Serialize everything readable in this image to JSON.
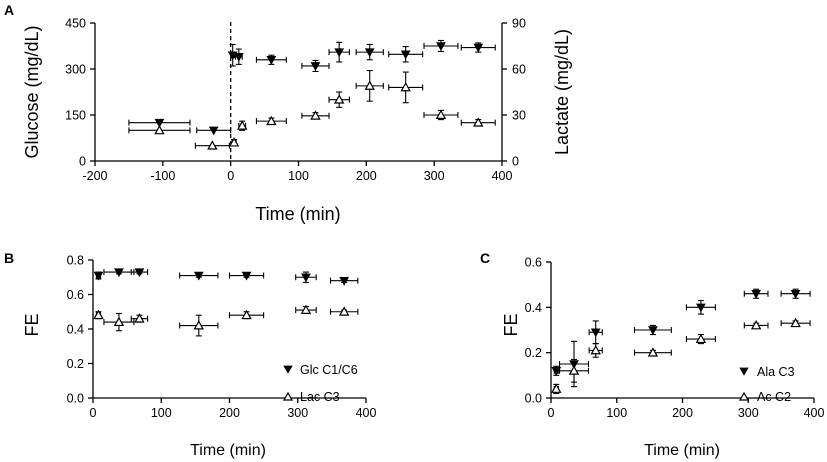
{
  "chart_data": [
    {
      "panel": "A",
      "type": "scatter",
      "xlabel": "Time (min)",
      "ylabel": "Glucose (mg/dL)",
      "y2label": "Lactate (mg/dL)",
      "xlim": [
        -200,
        400
      ],
      "ylim": [
        0,
        450
      ],
      "y2lim": [
        0,
        90
      ],
      "xticks": [
        "-200",
        "-100",
        "0",
        "100",
        "200",
        "300",
        "400"
      ],
      "yticks": [
        "0",
        "150",
        "300",
        "450"
      ],
      "y2ticks": [
        "0",
        "30",
        "60",
        "90"
      ],
      "vline_x": 0,
      "series": [
        {
          "name": "Glucose",
          "marker": "down-triangle-filled",
          "axis": "left",
          "points": [
            {
              "x": -105,
              "y": 125,
              "xerr": 45,
              "yerr": 0
            },
            {
              "x": -25,
              "y": 100,
              "xerr": 25,
              "yerr": 0
            },
            {
              "x": 3,
              "y": 345,
              "xerr": 3,
              "yerr": 35
            },
            {
              "x": 12,
              "y": 340,
              "xerr": 5,
              "yerr": 25
            },
            {
              "x": 60,
              "y": 330,
              "xerr": 22,
              "yerr": 15
            },
            {
              "x": 125,
              "y": 310,
              "xerr": 20,
              "yerr": 18
            },
            {
              "x": 160,
              "y": 355,
              "xerr": 15,
              "yerr": 32
            },
            {
              "x": 205,
              "y": 355,
              "xerr": 20,
              "yerr": 25
            },
            {
              "x": 258,
              "y": 348,
              "xerr": 25,
              "yerr": 25
            },
            {
              "x": 310,
              "y": 375,
              "xerr": 25,
              "yerr": 18
            },
            {
              "x": 365,
              "y": 370,
              "xerr": 25,
              "yerr": 15
            }
          ]
        },
        {
          "name": "Lactate",
          "marker": "up-triangle-open",
          "axis": "right",
          "points": [
            {
              "x": -105,
              "y": 20,
              "xerr": 45,
              "yerr": 0
            },
            {
              "x": -27,
              "y": 10,
              "xerr": 25,
              "yerr": 0
            },
            {
              "x": 5,
              "y": 12,
              "xerr": 3,
              "yerr": 2
            },
            {
              "x": 17,
              "y": 23,
              "xerr": 5,
              "yerr": 3
            },
            {
              "x": 60,
              "y": 26,
              "xerr": 22,
              "yerr": 2
            },
            {
              "x": 125,
              "y": 29.5,
              "xerr": 20,
              "yerr": 2
            },
            {
              "x": 160,
              "y": 40,
              "xerr": 15,
              "yerr": 5
            },
            {
              "x": 205,
              "y": 49,
              "xerr": 20,
              "yerr": 10
            },
            {
              "x": 258,
              "y": 48,
              "xerr": 25,
              "yerr": 10
            },
            {
              "x": 310,
              "y": 30,
              "xerr": 25,
              "yerr": 3
            },
            {
              "x": 365,
              "y": 25,
              "xerr": 25,
              "yerr": 2
            }
          ]
        }
      ]
    },
    {
      "panel": "B",
      "type": "scatter",
      "xlabel": "Time (min)",
      "ylabel": "FE",
      "xlim": [
        0,
        400
      ],
      "ylim": [
        0,
        0.8
      ],
      "xticks": [
        "0",
        "100",
        "200",
        "300",
        "400"
      ],
      "yticks": [
        "0.0",
        "0.2",
        "0.4",
        "0.6",
        "0.8"
      ],
      "legend": [
        "Glc C1/C6",
        "Lac C3"
      ],
      "legend_position": "bottom-right",
      "series": [
        {
          "name": "Glc C1/C6",
          "marker": "down-triangle-filled",
          "points": [
            {
              "x": 8,
              "y": 0.71,
              "xerr": 3,
              "yerr": 0.02
            },
            {
              "x": 38,
              "y": 0.73,
              "xerr": 22,
              "yerr": 0.01
            },
            {
              "x": 68,
              "y": 0.73,
              "xerr": 12,
              "yerr": 0.01
            },
            {
              "x": 155,
              "y": 0.71,
              "xerr": 28,
              "yerr": 0.01
            },
            {
              "x": 225,
              "y": 0.71,
              "xerr": 25,
              "yerr": 0.01
            },
            {
              "x": 312,
              "y": 0.7,
              "xerr": 15,
              "yerr": 0.03
            },
            {
              "x": 368,
              "y": 0.68,
              "xerr": 20,
              "yerr": 0.01
            }
          ]
        },
        {
          "name": "Lac C3",
          "marker": "up-triangle-open",
          "points": [
            {
              "x": 8,
              "y": 0.48,
              "xerr": 3,
              "yerr": 0.02
            },
            {
              "x": 38,
              "y": 0.44,
              "xerr": 22,
              "yerr": 0.05
            },
            {
              "x": 68,
              "y": 0.46,
              "xerr": 12,
              "yerr": 0.02
            },
            {
              "x": 155,
              "y": 0.42,
              "xerr": 28,
              "yerr": 0.06
            },
            {
              "x": 225,
              "y": 0.48,
              "xerr": 25,
              "yerr": 0.02
            },
            {
              "x": 312,
              "y": 0.51,
              "xerr": 15,
              "yerr": 0.02
            },
            {
              "x": 368,
              "y": 0.5,
              "xerr": 20,
              "yerr": 0.01
            }
          ]
        }
      ]
    },
    {
      "panel": "C",
      "type": "scatter",
      "xlabel": "Time (min)",
      "ylabel": "FE",
      "xlim": [
        0,
        400
      ],
      "ylim": [
        0,
        0.6
      ],
      "xticks": [
        "0",
        "100",
        "200",
        "300",
        "400"
      ],
      "yticks": [
        "0.0",
        "0.2",
        "0.4",
        "0.6"
      ],
      "legend": [
        "Ala C3",
        "Ac C2"
      ],
      "legend_position": "bottom-right",
      "series": [
        {
          "name": "Ala C3",
          "marker": "down-triangle-filled",
          "points": [
            {
              "x": 8,
              "y": 0.12,
              "xerr": 3,
              "yerr": 0.02
            },
            {
              "x": 35,
              "y": 0.15,
              "xerr": 22,
              "yerr": 0.1
            },
            {
              "x": 68,
              "y": 0.29,
              "xerr": 10,
              "yerr": 0.05
            },
            {
              "x": 155,
              "y": 0.3,
              "xerr": 28,
              "yerr": 0.02
            },
            {
              "x": 228,
              "y": 0.4,
              "xerr": 22,
              "yerr": 0.03
            },
            {
              "x": 312,
              "y": 0.46,
              "xerr": 18,
              "yerr": 0.02
            },
            {
              "x": 372,
              "y": 0.46,
              "xerr": 22,
              "yerr": 0.02
            }
          ]
        },
        {
          "name": "Ac C2",
          "marker": "up-triangle-open",
          "points": [
            {
              "x": 8,
              "y": 0.04,
              "xerr": 3,
              "yerr": 0.02
            },
            {
              "x": 35,
              "y": 0.12,
              "xerr": 22,
              "yerr": 0.05
            },
            {
              "x": 68,
              "y": 0.21,
              "xerr": 10,
              "yerr": 0.03
            },
            {
              "x": 155,
              "y": 0.2,
              "xerr": 28,
              "yerr": 0.01
            },
            {
              "x": 228,
              "y": 0.26,
              "xerr": 22,
              "yerr": 0.02
            },
            {
              "x": 312,
              "y": 0.32,
              "xerr": 18,
              "yerr": 0.01
            },
            {
              "x": 372,
              "y": 0.33,
              "xerr": 22,
              "yerr": 0.01
            }
          ]
        }
      ]
    }
  ],
  "panels": {
    "a": {
      "label": "A",
      "xlabel": "Time (min)",
      "ylabel": "Glucose (mg/dL)",
      "y2label": "Lactate (mg/dL)"
    },
    "b": {
      "label": "B",
      "xlabel": "Time (min)",
      "ylabel": "FE",
      "legend1": "Glc C1/C6",
      "legend2": "Lac C3"
    },
    "c": {
      "label": "C",
      "xlabel": "Time (min)",
      "ylabel": "FE",
      "legend1": "Ala C3",
      "legend2": "Ac C2"
    }
  }
}
